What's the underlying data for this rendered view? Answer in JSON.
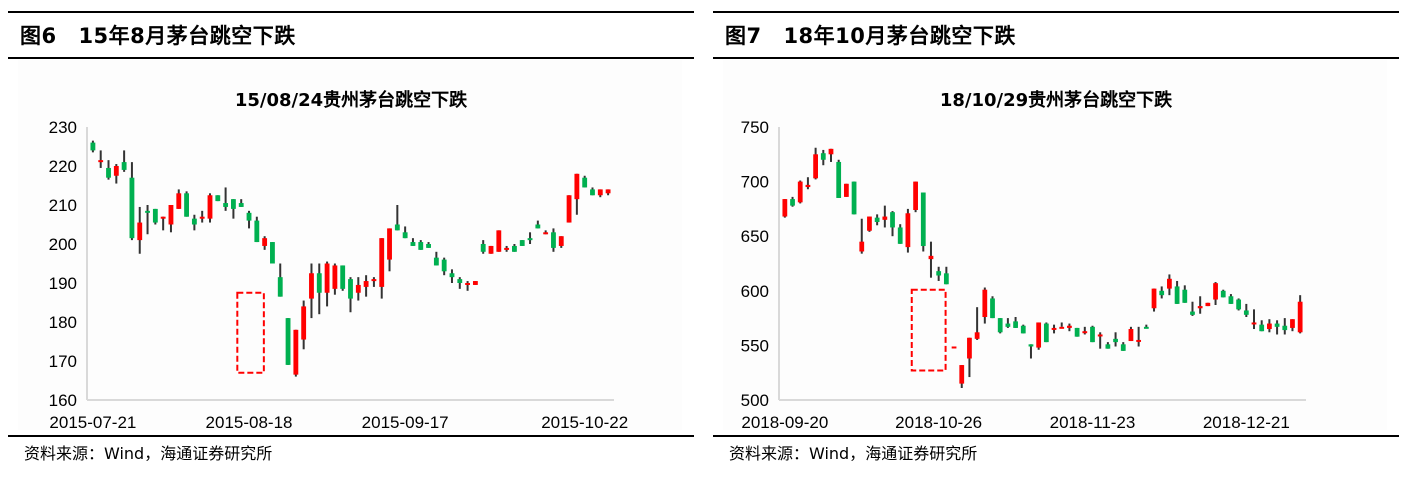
{
  "figures": [
    {
      "label": "图6",
      "title": "15年8月茅台跳空下跌",
      "chart_title": "15/08/24贵州茅台跳空下跌",
      "source": "资料来源：Wind，海通证券研究所"
    },
    {
      "label": "图7",
      "title": "18年10月茅台跳空下跌",
      "chart_title": "18/10/29贵州茅台跳空下跌",
      "source": "资料来源：Wind，海通证券研究所"
    }
  ],
  "colors": {
    "up": "#ff0000",
    "down": "#00b050",
    "wick": "#333333",
    "highlight_box": "#ff0000",
    "axis": "#d9d9d9"
  },
  "chart_data": [
    {
      "type": "candlestick",
      "title": "15/08/24贵州茅台跳空下跌",
      "xlabel": "",
      "ylabel": "",
      "ylim": [
        160,
        230
      ],
      "yticks": [
        160,
        170,
        180,
        190,
        200,
        210,
        220,
        230
      ],
      "xtick_labels": [
        "2015-07-21",
        "2015-08-18",
        "2015-09-17",
        "2015-10-22"
      ],
      "xtick_index": [
        0,
        20,
        40,
        63
      ],
      "grid": false,
      "annotation": {
        "type": "dashed-box",
        "index_range": [
          19,
          22
        ],
        "y_range": [
          167,
          187.5
        ],
        "note": "gap-down 2015-08-24"
      },
      "ohlc": [
        [
          226,
          226.5,
          223.5,
          224
        ],
        [
          221.5,
          224,
          219.5,
          221.5
        ],
        [
          219.5,
          221.5,
          216.5,
          217
        ],
        [
          217.5,
          220.5,
          215.5,
          220
        ],
        [
          221,
          224,
          218.5,
          219
        ],
        [
          217,
          221,
          201,
          201.5
        ],
        [
          201,
          209.5,
          197.5,
          205.5
        ],
        [
          208.5,
          210,
          202.5,
          208
        ],
        [
          209,
          209,
          205,
          205.5
        ],
        [
          207,
          207,
          203.5,
          207
        ],
        [
          205,
          210,
          203,
          210
        ],
        [
          209,
          214,
          209,
          213
        ],
        [
          213,
          213.5,
          207,
          207
        ],
        [
          206.5,
          207.5,
          203.5,
          205
        ],
        [
          206.5,
          208.5,
          205.5,
          207
        ],
        [
          206.5,
          213,
          205.5,
          212.5
        ],
        [
          212.5,
          212.5,
          211,
          211
        ],
        [
          210.5,
          214.5,
          208.5,
          209.5
        ],
        [
          211.5,
          211.5,
          206.5,
          209
        ],
        [
          210.5,
          211.5,
          209.5,
          209.5
        ],
        [
          208,
          208.5,
          204,
          206
        ],
        [
          206,
          207,
          200.5,
          200.5
        ],
        [
          199.5,
          202,
          198.5,
          201.5
        ],
        [
          200.5,
          200.5,
          195,
          195
        ],
        [
          191.5,
          195,
          186.5,
          186.5
        ],
        [
          181,
          181,
          169,
          169
        ],
        [
          166.5,
          177,
          166,
          178
        ],
        [
          175.5,
          185.5,
          173,
          184
        ],
        [
          186,
          195,
          181,
          192.5
        ],
        [
          192.5,
          195,
          182,
          187.5
        ],
        [
          187.5,
          195.5,
          184,
          195
        ],
        [
          188.5,
          195,
          187,
          194.5
        ],
        [
          194.5,
          194.5,
          188,
          188.5
        ],
        [
          191,
          191.5,
          182.5,
          186
        ],
        [
          187.5,
          191.5,
          185.5,
          189.5
        ],
        [
          189,
          192,
          186.5,
          190.5
        ],
        [
          190.5,
          191.5,
          189,
          191
        ],
        [
          189,
          200.5,
          186,
          201.5
        ],
        [
          196,
          203,
          193,
          204
        ],
        [
          205,
          210,
          203.5,
          203.5
        ],
        [
          203,
          204.5,
          202,
          201.5
        ],
        [
          200.5,
          201.5,
          199.5,
          199.5
        ],
        [
          200.5,
          201,
          200,
          198.5
        ],
        [
          200,
          200.5,
          199,
          199
        ],
        [
          196.5,
          198,
          195.5,
          194.5
        ],
        [
          196,
          196.5,
          192,
          193
        ],
        [
          192.5,
          193.5,
          190,
          191.5
        ],
        [
          191,
          191.5,
          188.5,
          190
        ],
        [
          189.5,
          190.5,
          188,
          190
        ],
        [
          189.5,
          190,
          189.5,
          190.5
        ],
        [
          200,
          201,
          197.5,
          198
        ],
        [
          197.5,
          197,
          198,
          199.5
        ],
        [
          198,
          197.5,
          198,
          203.5
        ],
        [
          198.5,
          199.5,
          198,
          199
        ],
        [
          199.5,
          200,
          198,
          198
        ],
        [
          201,
          201,
          199.5,
          199.5
        ],
        [
          201.5,
          203,
          200,
          201
        ],
        [
          205,
          206,
          204,
          204
        ],
        [
          203,
          203.5,
          202.5,
          203
        ],
        [
          203,
          204,
          198,
          199
        ],
        [
          199.5,
          202,
          199,
          202
        ],
        [
          205.5,
          212,
          205.5,
          212.5
        ],
        [
          211.5,
          218,
          207.5,
          218
        ],
        [
          217,
          217.5,
          214.5,
          214.5
        ],
        [
          214,
          214.5,
          212.5,
          212.5
        ],
        [
          212.5,
          214,
          212,
          214
        ],
        [
          213,
          214,
          212.5,
          214
        ]
      ]
    },
    {
      "type": "candlestick",
      "title": "18/10/29贵州茅台跳空下跌",
      "xlabel": "",
      "ylabel": "",
      "ylim": [
        500,
        750
      ],
      "yticks": [
        500,
        550,
        600,
        650,
        700,
        750
      ],
      "xtick_labels": [
        "2018-09-20",
        "2018-10-26",
        "2018-11-23",
        "2018-12-21"
      ],
      "xtick_index": [
        0,
        20,
        40,
        60
      ],
      "grid": false,
      "annotation": {
        "type": "dashed-box",
        "index_range": [
          17,
          21
        ],
        "y_range": [
          527,
          601
        ],
        "note": "gap-down 2018-10-29"
      },
      "ohlc": [
        [
          668,
          684,
          667,
          684
        ],
        [
          684,
          686,
          677,
          678
        ],
        [
          681,
          701,
          680,
          700
        ],
        [
          695,
          704,
          693,
          697
        ],
        [
          703,
          731,
          702,
          725
        ],
        [
          726,
          729,
          715,
          720
        ],
        [
          725,
          730,
          718,
          730
        ],
        [
          718,
          720,
          685,
          685
        ],
        [
          686,
          698,
          686,
          698
        ],
        [
          700,
          700,
          670,
          670
        ],
        [
          636,
          666,
          634,
          645
        ],
        [
          655,
          668,
          654,
          668
        ],
        [
          667,
          670,
          660,
          663
        ],
        [
          665,
          678,
          658,
          668
        ],
        [
          672,
          673,
          650,
          658
        ],
        [
          658,
          661,
          643,
          643
        ],
        [
          640,
          675,
          635,
          671
        ],
        [
          674,
          700,
          672,
          700
        ],
        [
          690,
          690,
          636,
          641
        ],
        [
          629,
          645,
          612,
          632
        ],
        [
          618,
          622,
          609,
          614
        ],
        [
          616,
          622,
          606,
          606
        ],
        [
          548,
          548,
          548,
          549
        ],
        [
          515,
          530,
          511,
          532
        ],
        [
          538,
          545,
          521,
          557
        ],
        [
          556,
          585,
          555,
          562
        ],
        [
          576,
          603,
          570,
          601
        ],
        [
          593,
          595,
          575,
          575
        ],
        [
          575,
          575,
          561,
          562
        ],
        [
          570,
          575,
          566,
          567
        ],
        [
          572,
          576,
          566,
          566
        ],
        [
          568,
          569,
          561,
          561
        ],
        [
          551,
          551,
          538,
          549
        ],
        [
          548,
          570,
          546,
          571
        ],
        [
          570,
          571,
          553,
          553
        ],
        [
          565,
          569,
          561,
          566
        ],
        [
          567,
          571,
          567,
          567
        ],
        [
          566,
          570,
          563,
          568
        ],
        [
          566,
          566,
          559,
          558
        ],
        [
          563,
          567,
          560,
          563
        ],
        [
          567,
          568,
          553,
          553
        ],
        [
          560,
          562,
          547,
          560
        ],
        [
          551,
          553,
          553,
          547
        ],
        [
          556,
          562,
          549,
          553
        ],
        [
          551,
          553,
          545,
          545
        ],
        [
          554,
          567,
          555,
          565
        ],
        [
          555,
          567,
          549,
          555
        ],
        [
          567,
          569,
          566,
          566
        ],
        [
          584,
          602,
          581,
          602
        ],
        [
          600,
          604,
          593,
          596
        ],
        [
          602,
          615,
          596,
          611
        ],
        [
          604,
          609,
          588,
          588
        ],
        [
          601,
          605,
          589,
          589
        ],
        [
          581,
          590,
          577,
          578
        ],
        [
          584,
          595,
          579,
          586
        ],
        [
          586,
          588,
          586,
          589
        ],
        [
          592,
          608,
          587,
          607
        ],
        [
          600,
          601,
          596,
          594
        ],
        [
          595,
          597,
          588,
          588
        ],
        [
          592,
          593,
          582,
          583
        ],
        [
          582,
          588,
          576,
          578
        ],
        [
          571,
          583,
          565,
          571
        ],
        [
          569,
          573,
          563,
          563
        ],
        [
          565,
          574,
          562,
          570
        ],
        [
          570,
          573,
          560,
          567
        ],
        [
          568,
          575,
          560,
          564
        ],
        [
          566,
          574,
          563,
          574
        ],
        [
          562,
          596,
          561,
          590
        ]
      ]
    }
  ]
}
